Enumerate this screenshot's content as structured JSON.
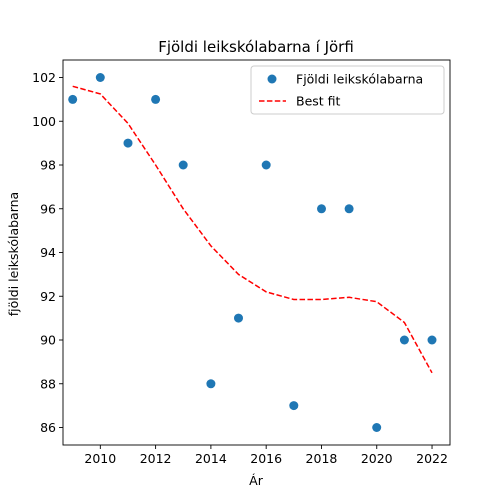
{
  "chart_data": {
    "type": "scatter",
    "title": "Fjöldi leikskólabarna í Jörfi",
    "xlabel": "Ár",
    "ylabel": "fjöldi leikskólabarna",
    "xlim": [
      2008.65,
      2022.65
    ],
    "ylim": [
      85.2,
      102.8
    ],
    "xticks": [
      2010,
      2012,
      2014,
      2016,
      2018,
      2020,
      2022
    ],
    "yticks": [
      86,
      88,
      90,
      92,
      94,
      96,
      98,
      100,
      102
    ],
    "grid": false,
    "legend_placement": "top-right",
    "series": [
      {
        "name": "Fjöldi leikskólabarna",
        "kind": "scatter",
        "color": "#1f77b4",
        "x": [
          2009,
          2010,
          2011,
          2012,
          2013,
          2014,
          2015,
          2016,
          2017,
          2018,
          2019,
          2020,
          2021,
          2022
        ],
        "y": [
          101,
          102,
          99,
          101,
          98,
          88,
          91,
          98,
          87,
          96,
          96,
          86,
          90,
          90
        ]
      },
      {
        "name": "Best fit",
        "kind": "line",
        "style": "dashed",
        "color": "#ff0000",
        "x": [
          2009,
          2010,
          2011,
          2012,
          2013,
          2014,
          2015,
          2016,
          2017,
          2018,
          2019,
          2020,
          2021,
          2022
        ],
        "y": [
          101.6,
          101.25,
          99.9,
          98.0,
          96.0,
          94.3,
          93.0,
          92.2,
          91.85,
          91.85,
          91.95,
          91.75,
          90.8,
          88.5
        ]
      }
    ]
  }
}
